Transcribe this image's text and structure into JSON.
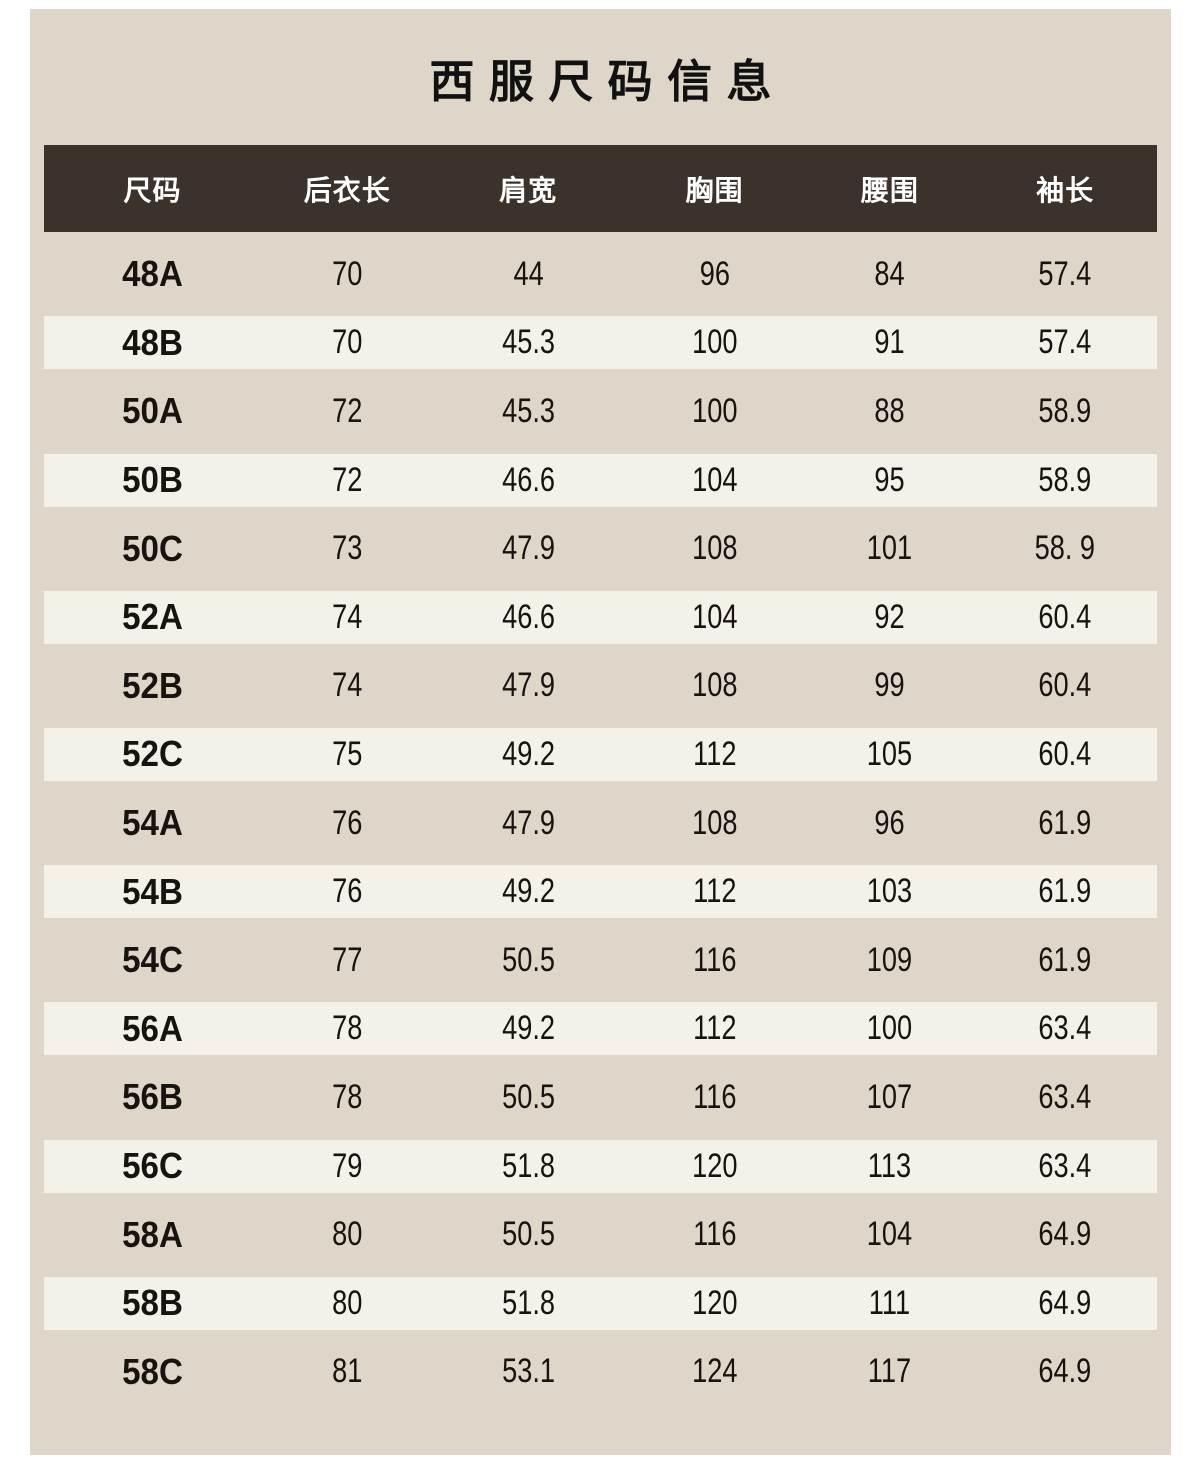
{
  "page": {
    "title": "西服尺码信息",
    "colors": {
      "page_margin": "#ffffff",
      "panel_background": "#ded6c8",
      "header_background": "#3b322b",
      "header_text": "#ffffff",
      "stripe": "#f4f1e9",
      "body_text": "#17130f"
    }
  },
  "table": {
    "columns": [
      "尺码",
      "后衣长",
      "肩宽",
      "胸围",
      "腰围",
      "袖长"
    ],
    "rows": [
      {
        "size": "48A",
        "values": [
          "70",
          "44",
          "96",
          "84",
          "57.4"
        ]
      },
      {
        "size": "48B",
        "values": [
          "70",
          "45.3",
          "100",
          "91",
          "57.4"
        ]
      },
      {
        "size": "50A",
        "values": [
          "72",
          "45.3",
          "100",
          "88",
          "58.9"
        ]
      },
      {
        "size": "50B",
        "values": [
          "72",
          "46.6",
          "104",
          "95",
          "58.9"
        ]
      },
      {
        "size": "50C",
        "values": [
          "73",
          "47.9",
          "108",
          "101",
          "58. 9"
        ]
      },
      {
        "size": "52A",
        "values": [
          "74",
          "46.6",
          "104",
          "92",
          "60.4"
        ]
      },
      {
        "size": "52B",
        "values": [
          "74",
          "47.9",
          "108",
          "99",
          "60.4"
        ]
      },
      {
        "size": "52C",
        "values": [
          "75",
          "49.2",
          "112",
          "105",
          "60.4"
        ]
      },
      {
        "size": "54A",
        "values": [
          "76",
          "47.9",
          "108",
          "96",
          "61.9"
        ]
      },
      {
        "size": "54B",
        "values": [
          "76",
          "49.2",
          "112",
          "103",
          "61.9"
        ]
      },
      {
        "size": "54C",
        "values": [
          "77",
          "50.5",
          "116",
          "109",
          "61.9"
        ]
      },
      {
        "size": "56A",
        "values": [
          "78",
          "49.2",
          "112",
          "100",
          "63.4"
        ]
      },
      {
        "size": "56B",
        "values": [
          "78",
          "50.5",
          "116",
          "107",
          "63.4"
        ]
      },
      {
        "size": "56C",
        "values": [
          "79",
          "51.8",
          "120",
          "113",
          "63.4"
        ]
      },
      {
        "size": "58A",
        "values": [
          "80",
          "50.5",
          "116",
          "104",
          "64.9"
        ]
      },
      {
        "size": "58B",
        "values": [
          "80",
          "51.8",
          "120",
          "111",
          "64.9"
        ]
      },
      {
        "size": "58C",
        "values": [
          "81",
          "53.1",
          "124",
          "117",
          "64.9"
        ]
      }
    ]
  }
}
